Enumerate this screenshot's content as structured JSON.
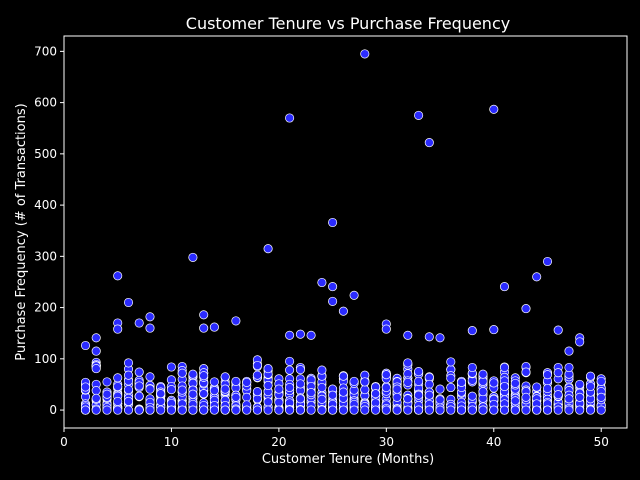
{
  "chart_data": {
    "type": "scatter",
    "title": "Customer Tenure vs Purchase Frequency",
    "xlabel": "Customer Tenure (Months)",
    "ylabel": "Purchase Frequency (# of Transactions)",
    "xlim": [
      0,
      52.4
    ],
    "ylim": [
      -35,
      730
    ],
    "x_ticks": [
      0,
      10,
      20,
      30,
      40,
      50
    ],
    "y_ticks": [
      0,
      100,
      200,
      300,
      400,
      500,
      600,
      700
    ],
    "grid": false,
    "background": "#000000",
    "point_fill": "#2b2bff",
    "point_edge": "#ffffff",
    "point_style": "circle",
    "notable_points": [
      {
        "x": 28,
        "y": 695
      },
      {
        "x": 21,
        "y": 570
      },
      {
        "x": 33,
        "y": 575
      },
      {
        "x": 34,
        "y": 522
      },
      {
        "x": 40,
        "y": 587
      },
      {
        "x": 25,
        "y": 366
      },
      {
        "x": 19,
        "y": 315
      },
      {
        "x": 12,
        "y": 298
      },
      {
        "x": 45,
        "y": 290
      },
      {
        "x": 5,
        "y": 262
      },
      {
        "x": 44,
        "y": 260
      },
      {
        "x": 24,
        "y": 249
      },
      {
        "x": 25,
        "y": 241
      },
      {
        "x": 41,
        "y": 241
      },
      {
        "x": 27,
        "y": 224
      },
      {
        "x": 6,
        "y": 210
      },
      {
        "x": 25,
        "y": 212
      },
      {
        "x": 43,
        "y": 198
      },
      {
        "x": 26,
        "y": 193
      },
      {
        "x": 13,
        "y": 186
      },
      {
        "x": 8,
        "y": 182
      },
      {
        "x": 16,
        "y": 174
      },
      {
        "x": 5,
        "y": 170
      },
      {
        "x": 7,
        "y": 170
      },
      {
        "x": 30,
        "y": 168
      },
      {
        "x": 8,
        "y": 160
      },
      {
        "x": 13,
        "y": 160
      },
      {
        "x": 14,
        "y": 162
      },
      {
        "x": 5,
        "y": 158
      },
      {
        "x": 38,
        "y": 155
      },
      {
        "x": 40,
        "y": 157
      },
      {
        "x": 46,
        "y": 156
      },
      {
        "x": 30,
        "y": 158
      },
      {
        "x": 21,
        "y": 146
      },
      {
        "x": 22,
        "y": 148
      },
      {
        "x": 23,
        "y": 146
      },
      {
        "x": 32,
        "y": 146
      },
      {
        "x": 34,
        "y": 143
      },
      {
        "x": 35,
        "y": 141
      },
      {
        "x": 3,
        "y": 141
      },
      {
        "x": 48,
        "y": 141
      },
      {
        "x": 2,
        "y": 126
      },
      {
        "x": 3,
        "y": 115
      },
      {
        "x": 47,
        "y": 115
      },
      {
        "x": 48,
        "y": 133
      }
    ],
    "dense_columns": {
      "x_from": 2,
      "x_to": 50,
      "step": 1,
      "y_max_range": [
        50,
        100
      ],
      "note": "each integer tenure value has a dense column of points from 0 up to roughly 50-100 transactions"
    }
  }
}
